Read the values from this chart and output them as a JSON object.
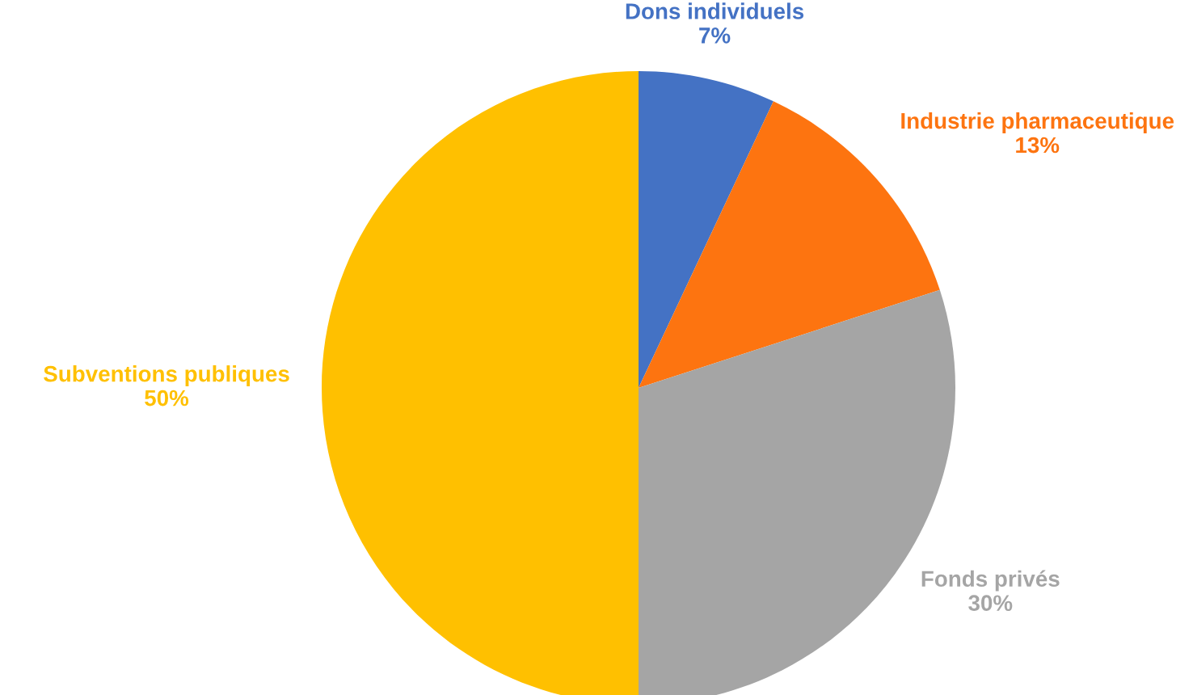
{
  "chart_data": {
    "type": "pie",
    "categories": [
      "Dons individuels",
      "Industrie pharmaceutique",
      "Fonds privés",
      "Subventions publiques"
    ],
    "values": [
      7,
      13,
      30,
      50
    ],
    "colors": [
      "#4472c4",
      "#fd7410",
      "#a5a5a5",
      "#ffc000"
    ],
    "value_labels": [
      "7%",
      "13%",
      "30%",
      "50%"
    ],
    "legend": false
  }
}
